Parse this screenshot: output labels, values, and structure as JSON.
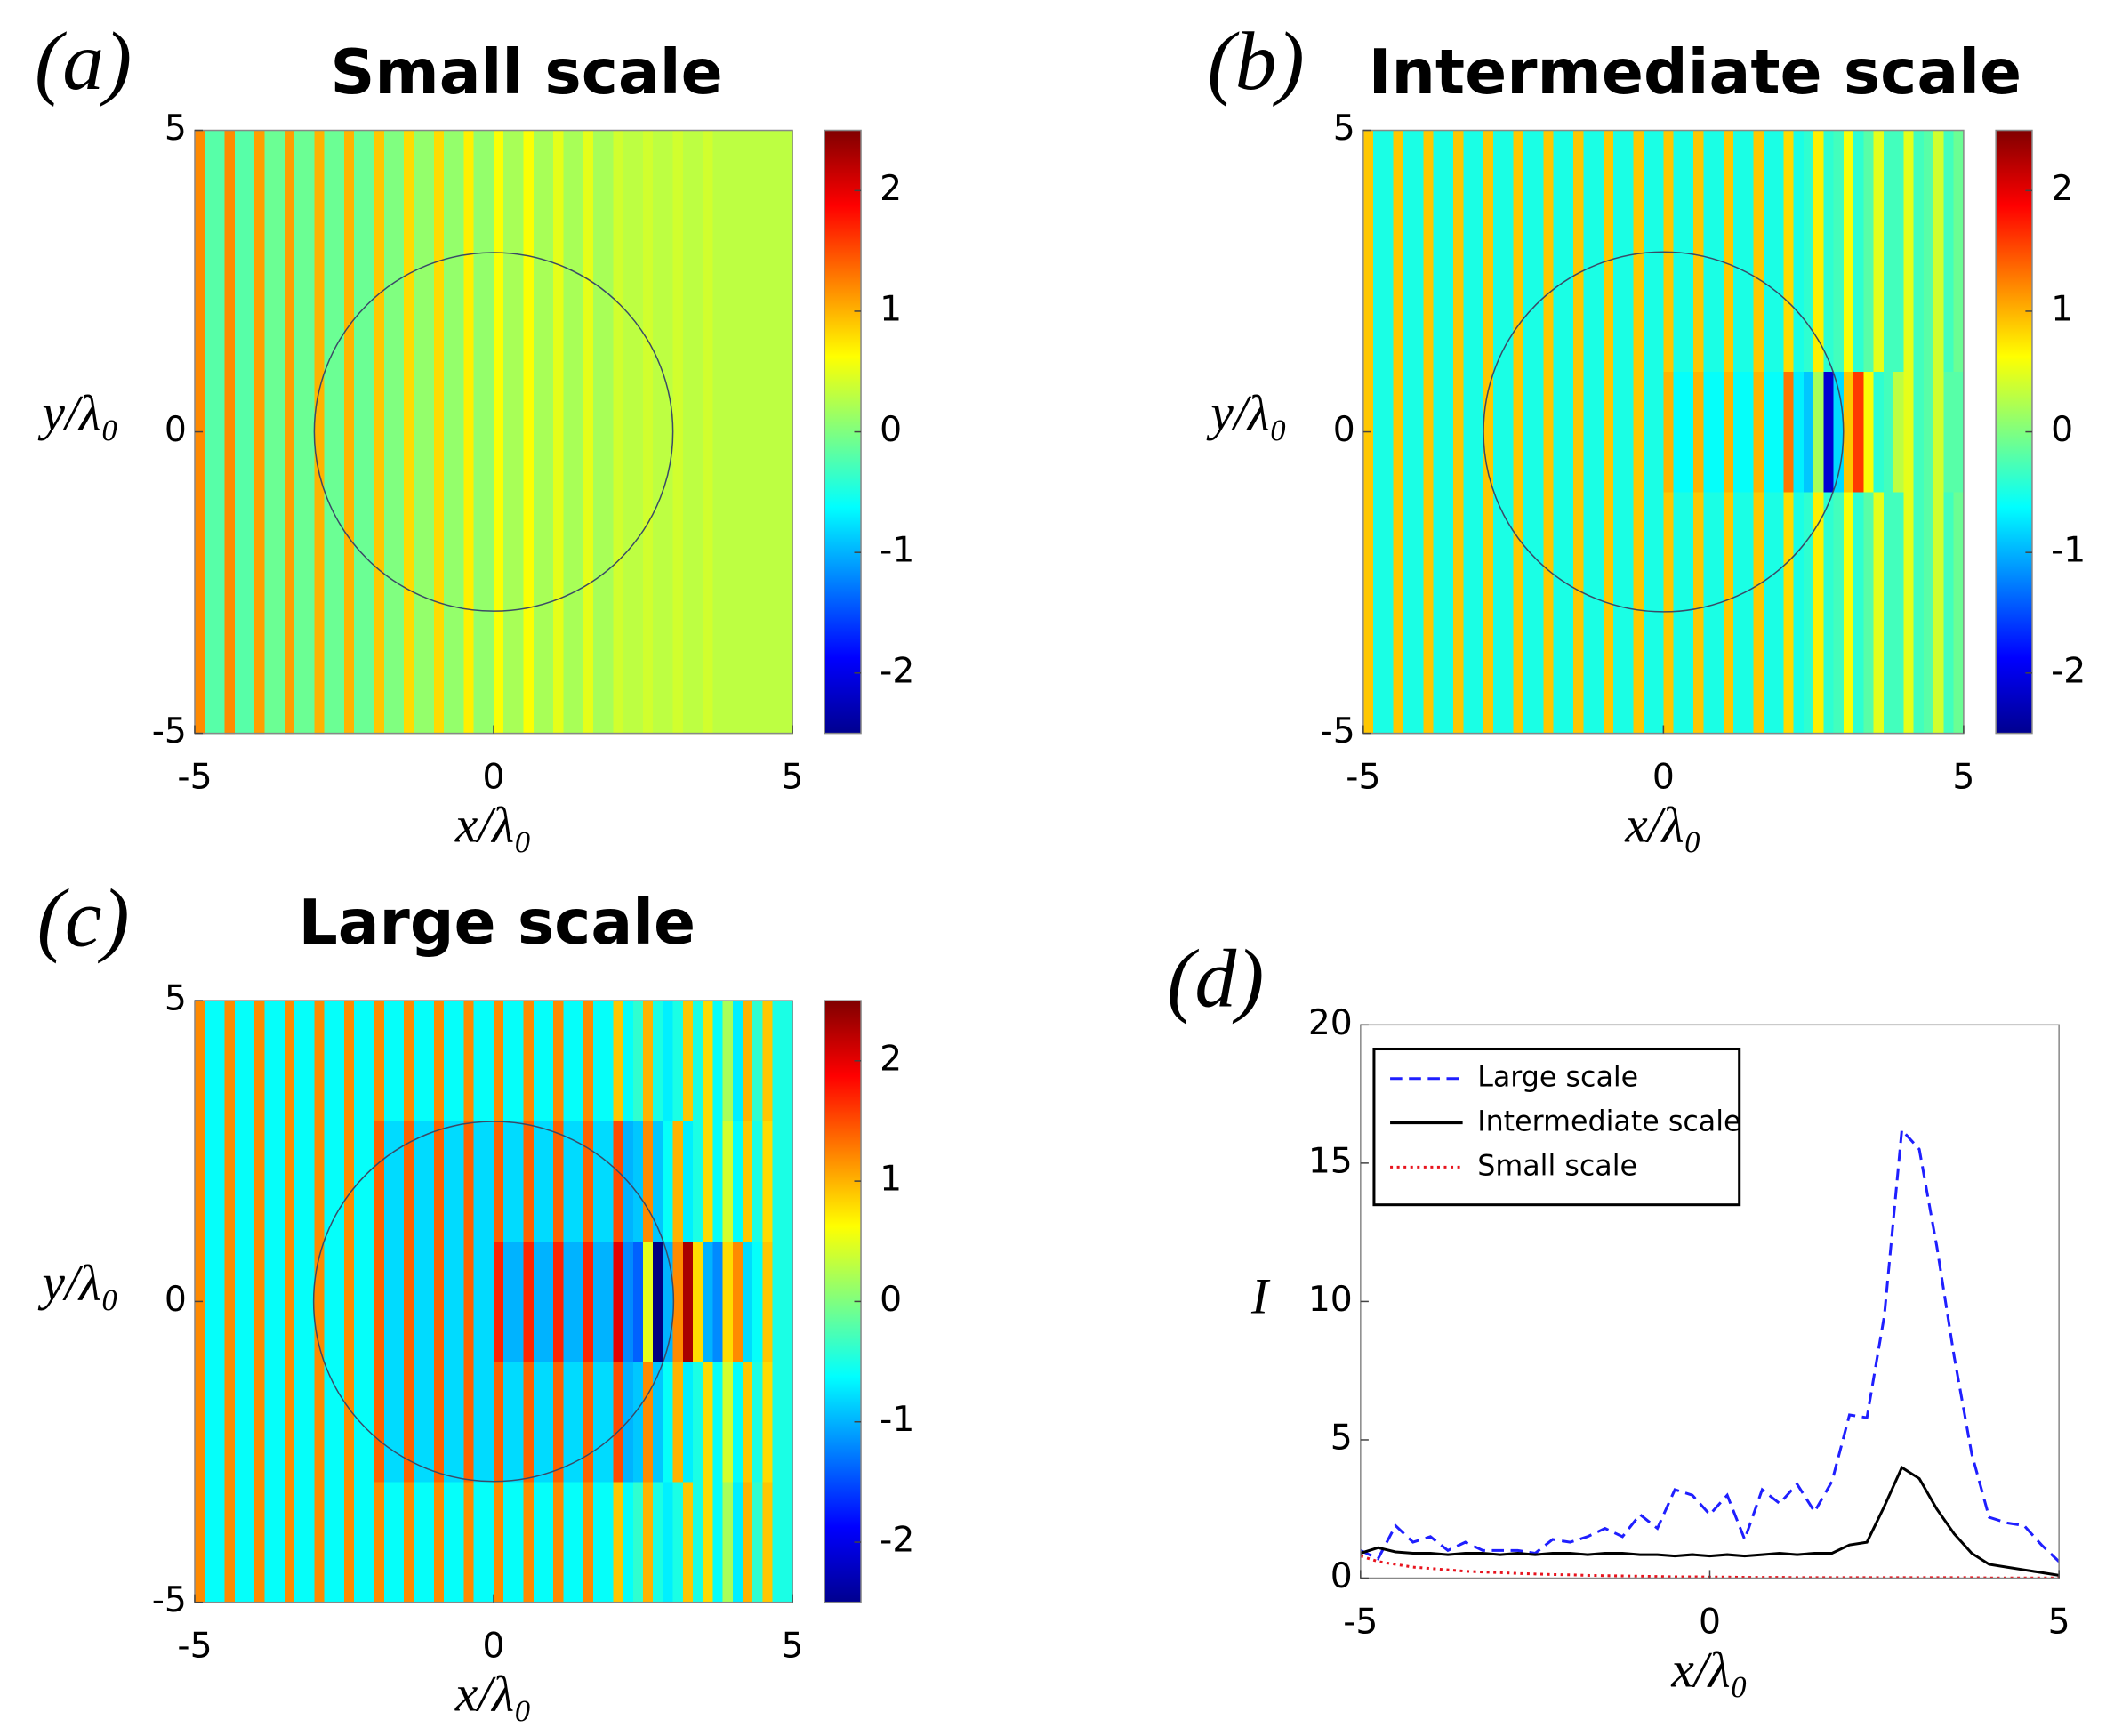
{
  "chart_data": [
    {
      "type": "heatmap",
      "label": "(a)",
      "title": "Small scale",
      "xlabel": "x/λ₀",
      "ylabel": "y/λ₀",
      "xlim": [
        -5,
        5
      ],
      "ylim": [
        -5,
        5
      ],
      "xticks": [
        -5,
        0,
        5
      ],
      "yticks": [
        -5,
        0,
        5
      ],
      "clim": [
        -2.5,
        2.5
      ],
      "cticks": [
        -2,
        -1,
        0,
        1,
        2
      ],
      "z": [
        [
          1.2,
          -0.2,
          -0.2,
          1.2,
          -0.2,
          -0.2,
          1.1,
          -0.1,
          -0.1,
          1.1,
          -0.1,
          -0.1,
          1,
          -0.1,
          -0.1,
          1,
          -0.1,
          -0.1,
          0.9,
          0,
          0,
          0.8,
          0.1,
          0.1,
          0.8,
          0.1,
          0.1,
          0.7,
          0.1,
          0.1,
          0.6,
          0.2,
          0.2,
          0.6,
          0.2,
          0.2,
          0.5,
          0.2,
          0.2,
          0.5,
          0.2,
          0.2,
          0.4,
          0.3,
          0.3,
          0.4,
          0.3,
          0.3,
          0.4,
          0.3,
          0.3,
          0.4,
          0.3,
          0.3,
          0.3,
          0.3,
          0.3,
          0.3,
          0.3,
          0.3
        ],
        [
          1.2,
          -0.2,
          -0.2,
          1.2,
          -0.2,
          -0.2,
          1.1,
          -0.1,
          -0.1,
          1.1,
          -0.1,
          -0.1,
          1,
          -0.1,
          -0.1,
          1,
          -0.1,
          -0.1,
          0.9,
          0,
          0,
          0.8,
          0.1,
          0.1,
          0.8,
          0.1,
          0.1,
          0.7,
          0.1,
          0.1,
          0.6,
          0.2,
          0.2,
          0.6,
          0.2,
          0.2,
          0.5,
          0.2,
          0.2,
          0.5,
          0.2,
          0.2,
          0.4,
          0.3,
          0.3,
          0.4,
          0.3,
          0.3,
          0.4,
          0.3,
          0.3,
          0.4,
          0.3,
          0.3,
          0.3,
          0.3,
          0.3,
          0.3,
          0.3,
          0.3
        ],
        [
          1.2,
          -0.2,
          -0.2,
          1.2,
          -0.2,
          -0.2,
          1.1,
          -0.1,
          -0.1,
          1.1,
          -0.1,
          -0.1,
          1,
          -0.1,
          -0.1,
          1,
          -0.1,
          -0.1,
          0.9,
          0,
          0,
          0.8,
          0.1,
          0.1,
          0.8,
          0.1,
          0.1,
          0.7,
          0.1,
          0.1,
          0.6,
          0.2,
          0.2,
          0.6,
          0.2,
          0.2,
          0.5,
          0.2,
          0.2,
          0.5,
          0.2,
          0.2,
          0.4,
          0.3,
          0.3,
          0.4,
          0.3,
          0.3,
          0.4,
          0.3,
          0.3,
          0.4,
          0.3,
          0.3,
          0.3,
          0.3,
          0.3,
          0.3,
          0.3,
          0.3
        ],
        [
          1.2,
          -0.2,
          -0.2,
          1.2,
          -0.2,
          -0.2,
          1.1,
          -0.1,
          -0.1,
          1.1,
          -0.1,
          -0.1,
          1,
          -0.1,
          -0.1,
          1,
          -0.1,
          -0.1,
          0.9,
          0,
          0,
          0.8,
          0.1,
          0.1,
          0.8,
          0.1,
          0.1,
          0.7,
          0.1,
          0.1,
          0.6,
          0.2,
          0.2,
          0.6,
          0.2,
          0.2,
          0.5,
          0.2,
          0.2,
          0.5,
          0.2,
          0.2,
          0.4,
          0.3,
          0.3,
          0.4,
          0.3,
          0.3,
          0.4,
          0.3,
          0.3,
          0.4,
          0.3,
          0.3,
          0.3,
          0.3,
          0.3,
          0.3,
          0.3,
          0.3
        ],
        [
          1.2,
          -0.2,
          -0.2,
          1.2,
          -0.2,
          -0.2,
          1.1,
          -0.1,
          -0.1,
          1.1,
          -0.1,
          -0.1,
          1,
          -0.1,
          -0.1,
          1,
          -0.1,
          -0.1,
          0.9,
          0,
          0,
          0.8,
          0.1,
          0.1,
          0.8,
          0.1,
          0.1,
          0.7,
          0.1,
          0.1,
          0.6,
          0.2,
          0.2,
          0.6,
          0.2,
          0.2,
          0.5,
          0.2,
          0.2,
          0.5,
          0.2,
          0.2,
          0.4,
          0.3,
          0.3,
          0.4,
          0.3,
          0.3,
          0.4,
          0.3,
          0.3,
          0.4,
          0.3,
          0.3,
          0.3,
          0.3,
          0.3,
          0.3,
          0.3,
          0.3
        ]
      ]
    },
    {
      "type": "heatmap",
      "label": "(b)",
      "title": "Intermediate scale",
      "xlabel": "x/λ₀",
      "ylabel": "y/λ₀",
      "xlim": [
        -5,
        5
      ],
      "ylim": [
        -5,
        5
      ],
      "xticks": [
        -5,
        0,
        5
      ],
      "yticks": [
        -5,
        0,
        5
      ],
      "clim": [
        -2.5,
        2.5
      ],
      "cticks": [
        -2,
        -1,
        0,
        1,
        2
      ],
      "z": [
        [
          0.9,
          -0.5,
          -0.5,
          0.9,
          -0.5,
          -0.5,
          0.9,
          -0.5,
          -0.5,
          0.9,
          -0.5,
          -0.5,
          0.9,
          -0.5,
          -0.5,
          0.9,
          -0.5,
          -0.5,
          0.9,
          -0.5,
          -0.5,
          0.9,
          -0.5,
          -0.5,
          0.9,
          -0.5,
          -0.5,
          0.9,
          -0.5,
          -0.5,
          0.9,
          -0.5,
          -0.5,
          0.9,
          -0.5,
          -0.5,
          0.9,
          -0.5,
          -0.5,
          0.9,
          -0.5,
          -0.5,
          0.8,
          -0.5,
          -0.4,
          0.7,
          -0.4,
          -0.3,
          0.6,
          -0.4,
          -0.2,
          0.5,
          -0.3,
          -0.3,
          0.5,
          -0.3,
          -0.2,
          0.4,
          -0.3,
          -0.1
        ],
        [
          0.9,
          -0.5,
          -0.5,
          0.9,
          -0.5,
          -0.5,
          0.9,
          -0.5,
          -0.5,
          0.9,
          -0.5,
          -0.5,
          0.9,
          -0.5,
          -0.5,
          0.9,
          -0.5,
          -0.5,
          0.9,
          -0.5,
          -0.5,
          0.9,
          -0.5,
          -0.5,
          0.9,
          -0.5,
          -0.5,
          0.9,
          -0.5,
          -0.5,
          0.9,
          -0.5,
          -0.5,
          0.9,
          -0.5,
          -0.5,
          0.9,
          -0.5,
          -0.5,
          0.9,
          -0.5,
          -0.5,
          0.8,
          -0.5,
          -0.4,
          0.7,
          -0.4,
          -0.3,
          0.6,
          -0.4,
          -0.2,
          0.5,
          -0.3,
          -0.3,
          0.5,
          -0.3,
          -0.2,
          0.4,
          -0.3,
          -0.1
        ],
        [
          0.9,
          -0.5,
          -0.5,
          0.9,
          -0.5,
          -0.5,
          0.9,
          -0.5,
          -0.5,
          0.9,
          -0.5,
          -0.5,
          0.9,
          -0.5,
          -0.5,
          0.9,
          -0.5,
          -0.5,
          0.9,
          -0.5,
          -0.5,
          0.9,
          -0.5,
          -0.5,
          0.9,
          -0.5,
          -0.5,
          0.9,
          -0.5,
          -0.5,
          1,
          -0.6,
          -0.6,
          1,
          -0.6,
          -0.6,
          1,
          -0.6,
          -0.6,
          1,
          -0.6,
          -0.6,
          1.3,
          -0.7,
          -0.9,
          0.2,
          -2.1,
          -0.8,
          0.9,
          1.6,
          0.6,
          -0.4,
          -0.3,
          0.3,
          0.5,
          -0.3,
          -0.2,
          0.4,
          -0.2,
          -0.2
        ],
        [
          0.9,
          -0.5,
          -0.5,
          0.9,
          -0.5,
          -0.5,
          0.9,
          -0.5,
          -0.5,
          0.9,
          -0.5,
          -0.5,
          0.9,
          -0.5,
          -0.5,
          0.9,
          -0.5,
          -0.5,
          0.9,
          -0.5,
          -0.5,
          0.9,
          -0.5,
          -0.5,
          0.9,
          -0.5,
          -0.5,
          0.9,
          -0.5,
          -0.5,
          0.9,
          -0.5,
          -0.5,
          0.9,
          -0.5,
          -0.5,
          0.9,
          -0.5,
          -0.5,
          0.9,
          -0.5,
          -0.5,
          0.8,
          -0.5,
          -0.4,
          0.7,
          -0.4,
          -0.3,
          0.6,
          -0.4,
          -0.2,
          0.5,
          -0.3,
          -0.3,
          0.5,
          -0.3,
          -0.2,
          0.4,
          -0.3,
          -0.1
        ],
        [
          0.9,
          -0.5,
          -0.5,
          0.9,
          -0.5,
          -0.5,
          0.9,
          -0.5,
          -0.5,
          0.9,
          -0.5,
          -0.5,
          0.9,
          -0.5,
          -0.5,
          0.9,
          -0.5,
          -0.5,
          0.9,
          -0.5,
          -0.5,
          0.9,
          -0.5,
          -0.5,
          0.9,
          -0.5,
          -0.5,
          0.9,
          -0.5,
          -0.5,
          0.9,
          -0.5,
          -0.5,
          0.9,
          -0.5,
          -0.5,
          0.9,
          -0.5,
          -0.5,
          0.9,
          -0.5,
          -0.5,
          0.8,
          -0.5,
          -0.4,
          0.7,
          -0.4,
          -0.3,
          0.6,
          -0.4,
          -0.2,
          0.5,
          -0.3,
          -0.3,
          0.5,
          -0.3,
          -0.2,
          0.4,
          -0.3,
          -0.1
        ]
      ]
    },
    {
      "type": "heatmap",
      "label": "(c)",
      "title": "Large scale",
      "xlabel": "x/λ₀",
      "ylabel": "y/λ₀",
      "xlim": [
        -5,
        5
      ],
      "ylim": [
        -5,
        5
      ],
      "xticks": [
        -5,
        0,
        5
      ],
      "yticks": [
        -5,
        0,
        5
      ],
      "clim": [
        -2.5,
        2.5
      ],
      "cticks": [
        -2,
        -1,
        0,
        1,
        2
      ],
      "z": [
        [
          1.2,
          -0.6,
          -0.6,
          1.2,
          -0.6,
          -0.6,
          1.2,
          -0.6,
          -0.6,
          1.2,
          -0.6,
          -0.6,
          1.2,
          -0.6,
          -0.6,
          1.2,
          -0.6,
          -0.6,
          1.2,
          -0.6,
          -0.6,
          1.2,
          -0.6,
          -0.6,
          1.2,
          -0.6,
          -0.6,
          1.2,
          -0.6,
          -0.6,
          1.2,
          -0.6,
          -0.6,
          1.2,
          -0.6,
          -0.6,
          1.2,
          -0.6,
          -0.6,
          1.2,
          -0.6,
          -0.6,
          0.9,
          -0.6,
          -0.4,
          1,
          -0.5,
          -0.7,
          -0.5,
          0.9,
          -0.5,
          0.8,
          -0.6,
          0.2,
          -0.7,
          1,
          -0.4,
          0.9,
          -0.5,
          -0.5
        ],
        [
          1.2,
          -0.6,
          -0.6,
          1.2,
          -0.6,
          -0.6,
          1.2,
          -0.6,
          -0.6,
          1.2,
          -0.6,
          -0.6,
          1.2,
          -0.6,
          -0.6,
          1.2,
          -0.6,
          -0.6,
          1.4,
          -0.8,
          -0.8,
          1.4,
          -0.8,
          -0.8,
          1.4,
          -0.8,
          -0.8,
          1.4,
          -0.8,
          -0.8,
          1.4,
          -0.8,
          -0.8,
          1.4,
          -0.8,
          -0.8,
          1.4,
          -0.8,
          -0.8,
          1.4,
          -0.8,
          -0.8,
          1.5,
          -1,
          -0.9,
          1.2,
          -0.9,
          -0.6,
          1,
          -0.7,
          -0.5,
          0.8,
          -0.6,
          0.4,
          -0.6,
          0.9,
          -0.5,
          0.8,
          -0.5,
          -0.5
        ],
        [
          1.2,
          -0.6,
          -0.6,
          1.2,
          -0.6,
          -0.6,
          1.2,
          -0.6,
          -0.6,
          1.2,
          -0.6,
          -0.6,
          1.2,
          -0.6,
          -0.6,
          1.2,
          -0.6,
          -0.6,
          1.4,
          -0.8,
          -0.8,
          1.4,
          -0.8,
          -0.8,
          1.4,
          -0.8,
          -0.8,
          1.4,
          -0.8,
          -0.8,
          1.7,
          -1,
          -1,
          1.7,
          -1,
          -1,
          1.7,
          -1,
          -1,
          1.7,
          -1,
          -1,
          2,
          -1.2,
          -1.4,
          0.5,
          -2.5,
          -1,
          1.2,
          2.3,
          0.8,
          -1,
          -1.2,
          0.8,
          1.2,
          -0.8,
          -0.6,
          0.9,
          -0.5,
          -0.5
        ],
        [
          1.2,
          -0.6,
          -0.6,
          1.2,
          -0.6,
          -0.6,
          1.2,
          -0.6,
          -0.6,
          1.2,
          -0.6,
          -0.6,
          1.2,
          -0.6,
          -0.6,
          1.2,
          -0.6,
          -0.6,
          1.4,
          -0.8,
          -0.8,
          1.4,
          -0.8,
          -0.8,
          1.4,
          -0.8,
          -0.8,
          1.4,
          -0.8,
          -0.8,
          1.4,
          -0.8,
          -0.8,
          1.4,
          -0.8,
          -0.8,
          1.4,
          -0.8,
          -0.8,
          1.4,
          -0.8,
          -0.8,
          1.5,
          -1,
          -0.9,
          1.2,
          -0.9,
          -0.6,
          1,
          -0.7,
          -0.5,
          0.8,
          -0.6,
          0.4,
          -0.6,
          0.9,
          -0.5,
          0.8,
          -0.5,
          -0.5
        ],
        [
          1.2,
          -0.6,
          -0.6,
          1.2,
          -0.6,
          -0.6,
          1.2,
          -0.6,
          -0.6,
          1.2,
          -0.6,
          -0.6,
          1.2,
          -0.6,
          -0.6,
          1.2,
          -0.6,
          -0.6,
          1.2,
          -0.6,
          -0.6,
          1.2,
          -0.6,
          -0.6,
          1.2,
          -0.6,
          -0.6,
          1.2,
          -0.6,
          -0.6,
          1.2,
          -0.6,
          -0.6,
          1.2,
          -0.6,
          -0.6,
          1.2,
          -0.6,
          -0.6,
          1.2,
          -0.6,
          -0.6,
          0.9,
          -0.6,
          -0.4,
          1,
          -0.5,
          -0.7,
          -0.5,
          0.9,
          -0.5,
          0.8,
          -0.6,
          0.2,
          -0.7,
          1,
          -0.4,
          0.9,
          -0.5,
          -0.5
        ]
      ]
    },
    {
      "type": "line",
      "label": "(d)",
      "xlabel": "x/λ₀",
      "ylabel": "I",
      "xlim": [
        -5,
        5
      ],
      "ylim": [
        0,
        20
      ],
      "xticks": [
        -5,
        0,
        5
      ],
      "yticks": [
        0,
        5,
        10,
        15,
        20
      ],
      "legend": "upper left",
      "x": [
        -5,
        -4.75,
        -4.5,
        -4.25,
        -4,
        -3.75,
        -3.5,
        -3.25,
        -3,
        -2.75,
        -2.5,
        -2.25,
        -2,
        -1.75,
        -1.5,
        -1.25,
        -1,
        -0.75,
        -0.5,
        -0.25,
        0,
        0.25,
        0.5,
        0.75,
        1,
        1.25,
        1.5,
        1.75,
        2,
        2.25,
        2.5,
        2.75,
        3,
        3.25,
        3.5,
        3.75,
        4,
        4.25,
        4.5,
        4.75,
        5
      ],
      "series": [
        {
          "name": "Large scale",
          "color": "#1f1fff",
          "style": "dashed",
          "values": [
            1,
            0.7,
            1.9,
            1.3,
            1.5,
            1,
            1.3,
            1,
            1,
            1,
            0.9,
            1.4,
            1.3,
            1.5,
            1.8,
            1.5,
            2.3,
            1.8,
            3.2,
            3,
            2.3,
            3,
            1.4,
            3.2,
            2.7,
            3.4,
            2.4,
            3.5,
            5.9,
            5.8,
            9.5,
            16.2,
            15.5,
            12,
            8,
            4.5,
            2.2,
            2,
            1.9,
            1.2,
            0.6
          ]
        },
        {
          "name": "Intermediate scale",
          "color": "#000000",
          "style": "solid",
          "values": [
            0.9,
            1.1,
            0.95,
            0.9,
            0.9,
            0.85,
            0.9,
            0.9,
            0.85,
            0.9,
            0.85,
            0.9,
            0.9,
            0.85,
            0.9,
            0.9,
            0.85,
            0.85,
            0.8,
            0.85,
            0.8,
            0.85,
            0.8,
            0.85,
            0.9,
            0.85,
            0.9,
            0.9,
            1.2,
            1.3,
            2.6,
            4,
            3.6,
            2.5,
            1.6,
            0.9,
            0.5,
            0.4,
            0.3,
            0.2,
            0.1
          ]
        },
        {
          "name": "Small scale",
          "color": "#e8141e",
          "style": "dotted",
          "values": [
            0.8,
            0.6,
            0.5,
            0.4,
            0.35,
            0.3,
            0.25,
            0.22,
            0.2,
            0.17,
            0.15,
            0.13,
            0.12,
            0.1,
            0.09,
            0.08,
            0.07,
            0.06,
            0.05,
            0.05,
            0.04,
            0.04,
            0.03,
            0.03,
            0.03,
            0.02,
            0.02,
            0.02,
            0.02,
            0.02,
            0.02,
            0.02,
            0.02,
            0.02,
            0.02,
            0.02,
            0.01,
            0.01,
            0.01,
            0.01,
            0.01
          ]
        }
      ]
    }
  ]
}
